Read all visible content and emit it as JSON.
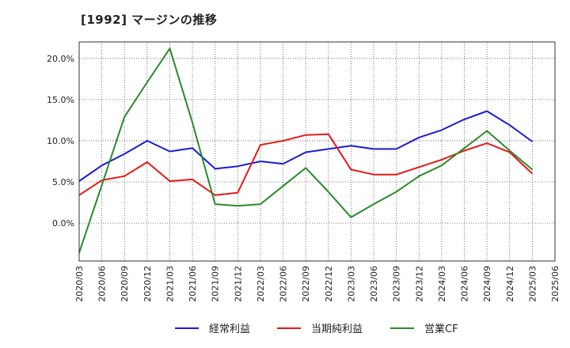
{
  "chart_data": {
    "type": "line",
    "title": "[1992]  マージンの推移",
    "xlabel": "",
    "ylabel": "",
    "categories": [
      "2020/03",
      "2020/06",
      "2020/09",
      "2020/12",
      "2021/03",
      "2021/06",
      "2021/09",
      "2021/12",
      "2022/03",
      "2022/06",
      "2022/09",
      "2022/12",
      "2023/03",
      "2023/06",
      "2023/09",
      "2023/12",
      "2024/03",
      "2024/06",
      "2024/09",
      "2024/12",
      "2025/03",
      "2025/06"
    ],
    "ylim": [
      -4.6,
      22.0
    ],
    "yticks": [
      0,
      5,
      10,
      15,
      20
    ],
    "ytick_labels": [
      "0.0%",
      "5.0%",
      "10.0%",
      "15.0%",
      "20.0%"
    ],
    "grid": true,
    "legend_position": "bottom",
    "series": [
      {
        "name": "経常利益",
        "color": "#1a1adb",
        "values": [
          5.1,
          7.0,
          8.4,
          10.0,
          8.7,
          9.1,
          6.6,
          6.9,
          7.5,
          7.2,
          8.6,
          9.0,
          9.4,
          9.0,
          9.0,
          10.4,
          11.3,
          12.6,
          13.6,
          11.9,
          9.9,
          null
        ]
      },
      {
        "name": "当期純利益",
        "color": "#e61919",
        "values": [
          3.4,
          5.2,
          5.7,
          7.4,
          5.1,
          5.3,
          3.4,
          3.7,
          9.5,
          10.0,
          10.7,
          10.8,
          6.5,
          5.9,
          5.9,
          6.8,
          7.7,
          8.8,
          9.7,
          8.6,
          6.0,
          null
        ]
      },
      {
        "name": "営業CF",
        "color": "#2a8a2a",
        "values": [
          -3.6,
          4.6,
          12.9,
          17.1,
          21.2,
          12.2,
          2.3,
          2.1,
          2.3,
          4.5,
          6.7,
          3.8,
          0.7,
          2.3,
          3.8,
          5.7,
          7.0,
          9.1,
          11.2,
          8.8,
          6.5,
          null
        ]
      }
    ]
  }
}
